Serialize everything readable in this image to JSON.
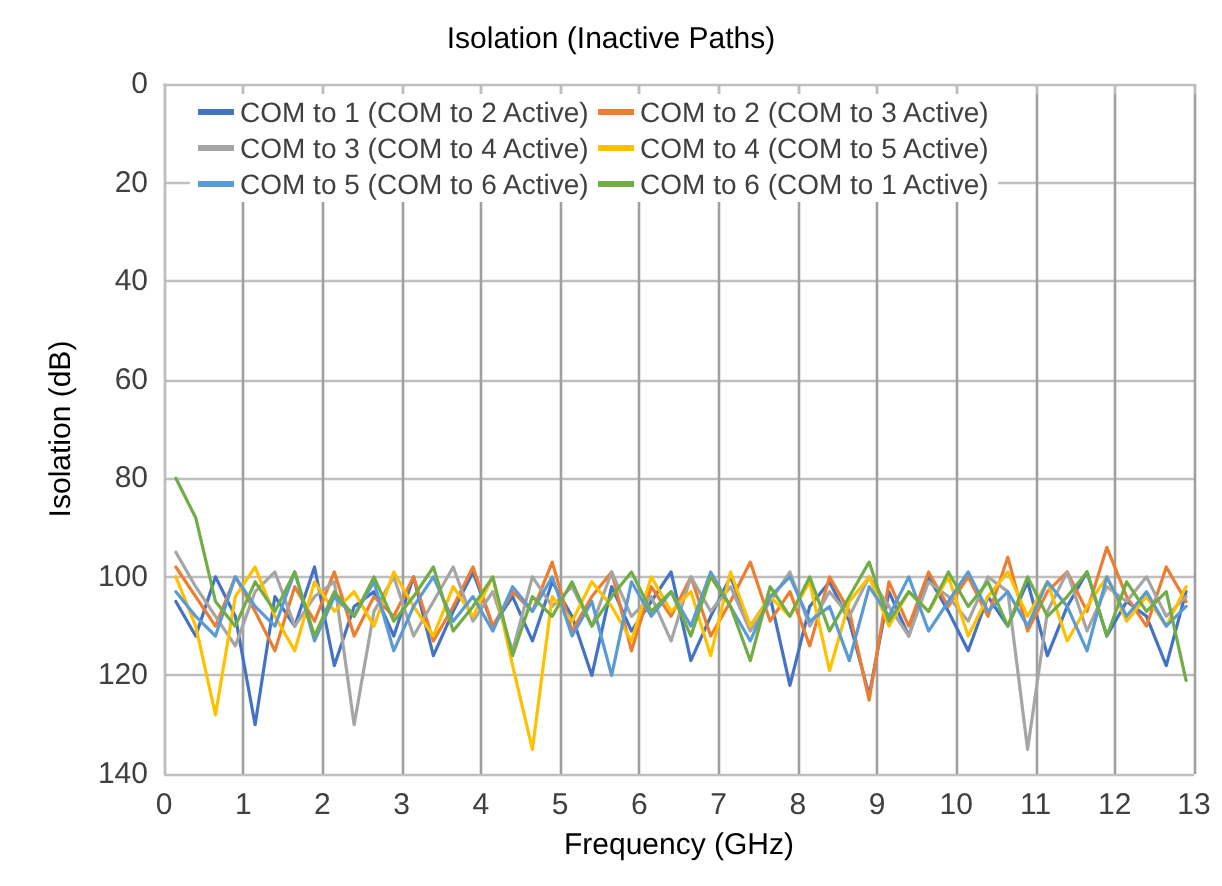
{
  "chart_data": {
    "type": "line",
    "title": "Isolation (Inactive Paths)",
    "xlabel": "Frequency (GHz)",
    "ylabel": "Isolation (dB)",
    "x": [
      0.15,
      0.4,
      0.65,
      0.9,
      1.15,
      1.4,
      1.65,
      1.9,
      2.15,
      2.4,
      2.65,
      2.9,
      3.15,
      3.4,
      3.65,
      3.9,
      4.15,
      4.4,
      4.65,
      4.9,
      5.15,
      5.4,
      5.65,
      5.9,
      6.15,
      6.4,
      6.65,
      6.9,
      7.15,
      7.4,
      7.65,
      7.9,
      8.15,
      8.4,
      8.65,
      8.9,
      9.15,
      9.4,
      9.65,
      9.9,
      10.15,
      10.4,
      10.65,
      10.9,
      11.15,
      11.4,
      11.65,
      11.9,
      12.15,
      12.4,
      12.65,
      12.9
    ],
    "xlim": [
      0,
      13
    ],
    "xticks": [
      0,
      1,
      2,
      3,
      4,
      5,
      6,
      7,
      8,
      9,
      10,
      11,
      12,
      13
    ],
    "ylim": [
      140,
      0
    ],
    "yticks": [
      0,
      20,
      40,
      60,
      80,
      100,
      120,
      140
    ],
    "grid": true,
    "legend": "top",
    "marker": "none",
    "line_style": "solid",
    "series": [
      {
        "name": "COM to 1 (COM to 2 Active)",
        "color": "#4472c4",
        "values": [
          105,
          112,
          100,
          108,
          130,
          104,
          110,
          98,
          118,
          106,
          103,
          112,
          100,
          116,
          107,
          99,
          110,
          104,
          113,
          101,
          108,
          120,
          102,
          111,
          105,
          99,
          117,
          108,
          100,
          110,
          104,
          122,
          106,
          101,
          109,
          124,
          103,
          112,
          100,
          107,
          115,
          104,
          110,
          101,
          116,
          106,
          99,
          112,
          105,
          108,
          118,
          103
        ]
      },
      {
        "name": "COM to 2 (COM to 3 Active)",
        "color": "#ed7d31",
        "values": [
          98,
          104,
          110,
          100,
          107,
          115,
          102,
          109,
          99,
          112,
          104,
          108,
          100,
          113,
          106,
          98,
          110,
          103,
          107,
          97,
          111,
          104,
          99,
          115,
          102,
          108,
          100,
          112,
          105,
          97,
          109,
          103,
          114,
          100,
          107,
          125,
          101,
          110,
          99,
          106,
          100,
          108,
          96,
          111,
          103,
          99,
          107,
          94,
          104,
          110,
          98,
          105
        ]
      },
      {
        "name": "COM to 3 (COM to 4 Active)",
        "color": "#a5a5a5",
        "values": [
          95,
          102,
          108,
          114,
          103,
          99,
          110,
          104,
          101,
          130,
          107,
          100,
          112,
          105,
          98,
          109,
          103,
          115,
          100,
          106,
          102,
          110,
          99,
          108,
          104,
          113,
          100,
          107,
          102,
          111,
          105,
          99,
          110,
          103,
          108,
          100,
          106,
          112,
          101,
          104,
          109,
          100,
          103,
          135,
          107,
          99,
          111,
          102,
          105,
          100,
          108,
          104
        ]
      },
      {
        "name": "COM to 4 (COM to 5 Active)",
        "color": "#ffc000",
        "values": [
          100,
          110,
          128,
          104,
          98,
          108,
          115,
          101,
          107,
          103,
          110,
          99,
          106,
          112,
          102,
          108,
          100,
          118,
          135,
          104,
          109,
          101,
          106,
          113,
          100,
          107,
          103,
          116,
          99,
          110,
          104,
          108,
          101,
          119,
          105,
          100,
          110,
          103,
          107,
          100,
          112,
          104,
          99,
          108,
          101,
          113,
          106,
          100,
          109,
          104,
          110,
          102
        ]
      },
      {
        "name": "COM to 5 (COM to 6 Active)",
        "color": "#5b9bd5",
        "values": [
          103,
          108,
          112,
          100,
          106,
          110,
          99,
          113,
          104,
          108,
          101,
          115,
          106,
          100,
          109,
          104,
          111,
          102,
          107,
          100,
          112,
          105,
          120,
          101,
          108,
          103,
          110,
          99,
          106,
          113,
          104,
          100,
          109,
          106,
          117,
          102,
          108,
          100,
          111,
          105,
          99,
          107,
          103,
          110,
          101,
          106,
          115,
          100,
          108,
          103,
          110,
          106
        ]
      },
      {
        "name": "COM to 6 (COM to 1 Active)",
        "color": "#70ad47",
        "values": [
          80,
          88,
          105,
          110,
          101,
          107,
          99,
          112,
          103,
          108,
          100,
          109,
          104,
          98,
          111,
          106,
          100,
          116,
          104,
          108,
          101,
          110,
          104,
          99,
          107,
          103,
          112,
          100,
          106,
          117,
          102,
          108,
          100,
          111,
          104,
          97,
          109,
          103,
          107,
          99,
          106,
          101,
          110,
          100,
          108,
          104,
          99,
          112,
          101,
          107,
          103,
          121
        ]
      }
    ]
  }
}
